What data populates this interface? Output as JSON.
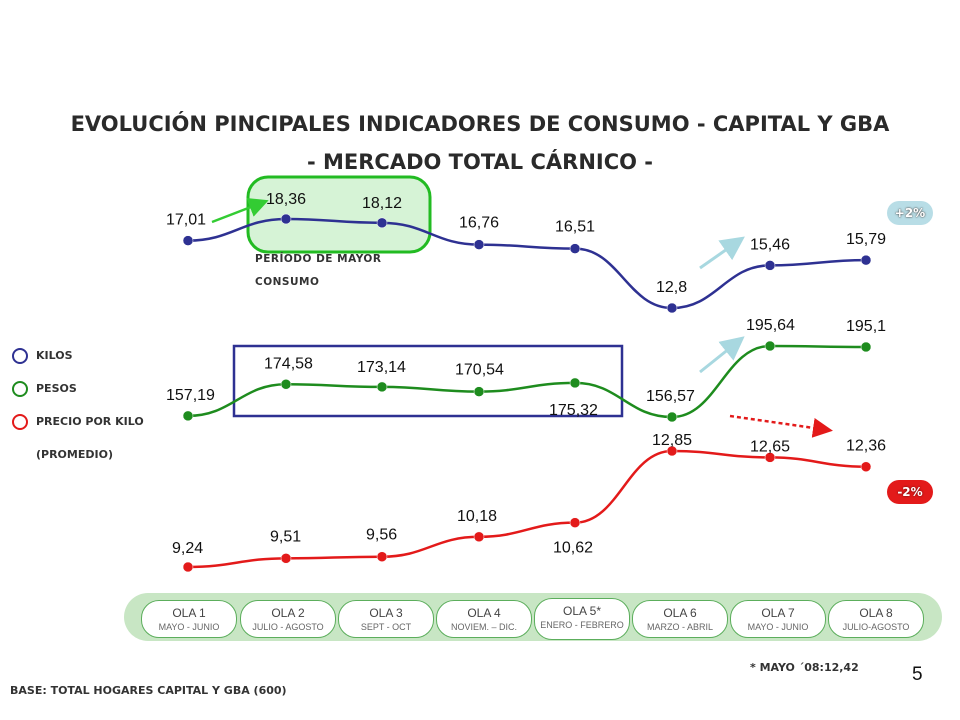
{
  "title": {
    "line1": "EVOLUCIÓN PINCIPALES INDICADORES DE CONSUMO - CAPITAL Y GBA",
    "line2": "- MERCADO TOTAL CÁRNICO -"
  },
  "chart_data": {
    "type": "line",
    "categories": [
      "OLA 1",
      "OLA 2",
      "OLA 3",
      "OLA 4",
      "OLA 5*",
      "OLA 6",
      "OLA 7",
      "OLA 8"
    ],
    "series": [
      {
        "name": "KILOS",
        "color": "#2e3192",
        "values": [
          17.01,
          18.36,
          18.12,
          16.76,
          16.51,
          12.8,
          15.46,
          15.79
        ],
        "labels": [
          "17,01",
          "18,36",
          "18,12",
          "16,76",
          "16,51",
          "12,8",
          "15,46",
          "15,79"
        ]
      },
      {
        "name": "PESOS",
        "color": "#1e8c1e",
        "values": [
          157.19,
          174.58,
          173.14,
          170.54,
          175.32,
          156.57,
          195.64,
          195.1
        ],
        "labels": [
          "157,19",
          "174,58",
          "173,14",
          "170,54",
          "175,32",
          "156,57",
          "195,64",
          "195,1"
        ]
      },
      {
        "name": "PRECIO POR KILO (PROMEDIO)",
        "color": "#e31a1a",
        "values": [
          9.24,
          9.51,
          9.56,
          10.18,
          10.62,
          12.85,
          12.65,
          12.36
        ],
        "labels": [
          "9,24",
          "9,51",
          "9,56",
          "10,18",
          "10,62",
          "12,85",
          "12,65",
          "12,36"
        ]
      }
    ],
    "annotations": {
      "peak_period": "PERÍODO DE MAYOR CONSUMO",
      "badge_up": "+2%",
      "badge_down": "-2%"
    }
  },
  "legend": {
    "kilos": "KILOS",
    "pesos": "PESOS",
    "precio_line1": "PRECIO POR KILO",
    "precio_line2": "(PROMEDIO)"
  },
  "waves": [
    {
      "name": "OLA 1",
      "period": "MAYO - JUNIO"
    },
    {
      "name": "OLA 2",
      "period": "JULIO - AGOSTO"
    },
    {
      "name": "OLA 3",
      "period": "SEPT - OCT"
    },
    {
      "name": "OLA 4",
      "period": "NOVIEM. – DIC."
    },
    {
      "name": "OLA 5*",
      "period": "ENERO - FEBRERO"
    },
    {
      "name": "OLA 6",
      "period": "MARZO - ABRIL"
    },
    {
      "name": "OLA 7",
      "period": "MAYO - JUNIO"
    },
    {
      "name": "OLA 8",
      "period": "JULIO-AGOSTO"
    }
  ],
  "footnote": "* MAYO ´08:12,42",
  "base_note": "BASE: TOTAL HOGARES CAPITAL Y GBA (600)",
  "page_number": "5"
}
